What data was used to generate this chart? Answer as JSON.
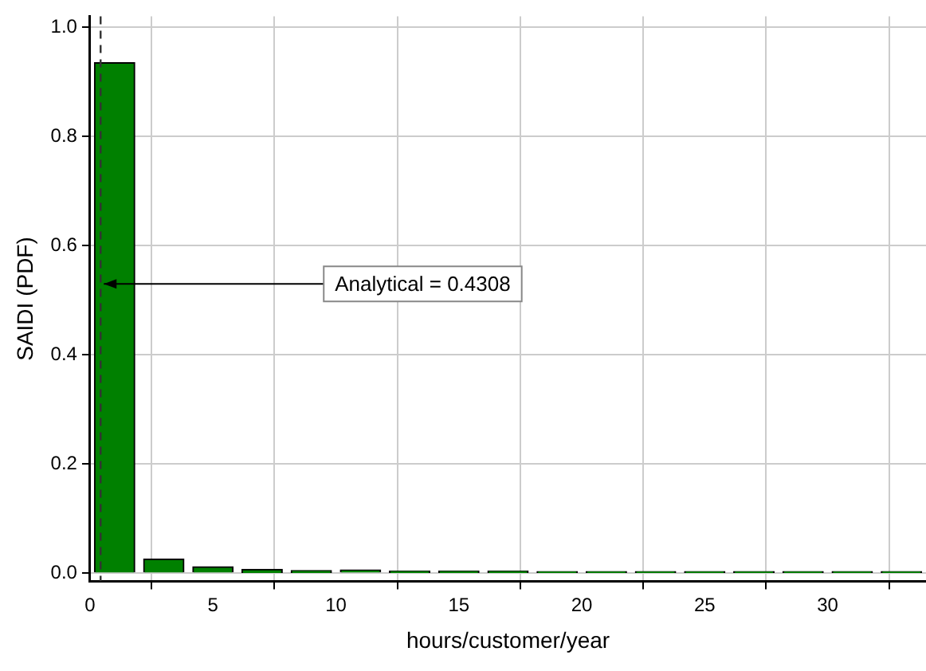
{
  "chart_data": {
    "type": "histogram",
    "xlabel": "hours/customer/year",
    "ylabel": "SAIDI (PDF)",
    "bins": [
      0,
      2,
      4,
      6,
      8,
      10,
      12,
      14,
      16,
      18,
      20,
      22,
      24,
      26,
      28,
      30,
      32,
      34
    ],
    "values": [
      0.935,
      0.026,
      0.012,
      0.007,
      0.005,
      0.006,
      0.004,
      0.004,
      0.004,
      0.003,
      0.003,
      0.003,
      0.003,
      0.003,
      0.003,
      0.003,
      0.003
    ],
    "color": "#008000",
    "xlim": [
      0,
      34
    ],
    "xticks": [
      0,
      5,
      10,
      15,
      20,
      25,
      30
    ],
    "ylim": [
      -0.015,
      1.02
    ],
    "yticks": [
      {
        "value": 0,
        "label": "0.0"
      },
      {
        "value": 0.2,
        "label": "0.2"
      },
      {
        "value": 0.4,
        "label": "0.4"
      },
      {
        "value": 0.6,
        "label": "0.6"
      },
      {
        "value": 0.8,
        "label": "0.8"
      },
      {
        "value": 1,
        "label": "1.0"
      }
    ],
    "grid": true,
    "legend": false,
    "ref_lines": [
      {
        "axis": "x",
        "value": 0.4308,
        "line_style": "dashed",
        "color": "#333333"
      }
    ],
    "annotations": [
      {
        "text": "Analytical = 0.4308",
        "x": 0.4308,
        "y": 0.53
      }
    ]
  }
}
